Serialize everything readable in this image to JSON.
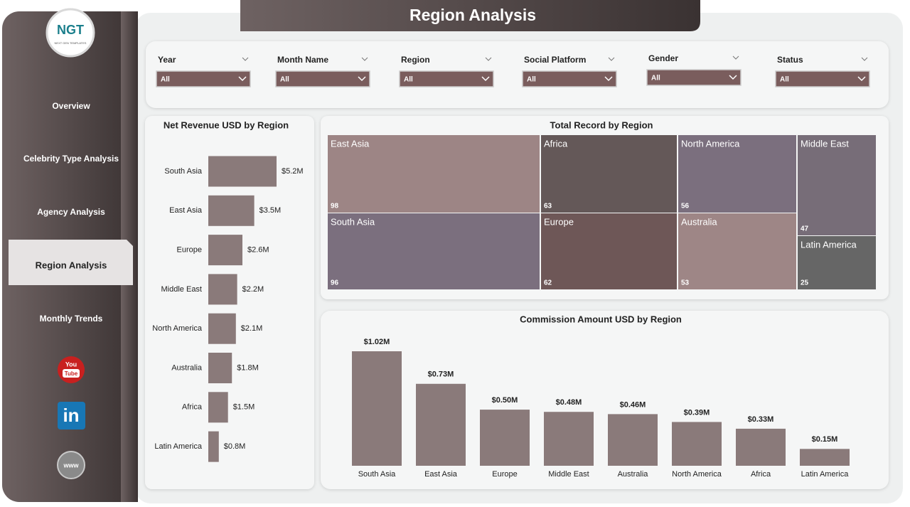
{
  "header": {
    "title": "Region Analysis"
  },
  "logo": {
    "text": "NGT",
    "subtext": "NEXT GEN TEMPLATES"
  },
  "nav": {
    "items": [
      "Overview",
      "Celebrity Type Analysis",
      "Agency Analysis",
      "Region Analysis",
      "Monthly Trends"
    ],
    "active": 3
  },
  "icons": {
    "youtube": [
      "You",
      "Tube"
    ],
    "linkedin": "in",
    "web": "www"
  },
  "filters": [
    {
      "label": "Year",
      "value": "All"
    },
    {
      "label": "Month Name",
      "value": "All"
    },
    {
      "label": "Region",
      "value": "All"
    },
    {
      "label": "Social Platform",
      "value": "All"
    },
    {
      "label": "Gender",
      "value": "All"
    },
    {
      "label": "Status",
      "value": "All"
    }
  ],
  "chart_data": [
    {
      "type": "bar",
      "orientation": "horizontal",
      "title": "Net Revenue USD by Region",
      "color": "#8a7a7a",
      "categories": [
        "South Asia",
        "East Asia",
        "Europe",
        "Middle East",
        "North America",
        "Australia",
        "Africa",
        "Latin America"
      ],
      "values": [
        5200000,
        3500000,
        2600000,
        2200000,
        2100000,
        1800000,
        1500000,
        800000
      ],
      "value_labels": [
        "$5.2M",
        "$3.5M",
        "$2.6M",
        "$2.2M",
        "$2.1M",
        "$1.8M",
        "$1.5M",
        "$0.8M"
      ]
    },
    {
      "type": "treemap",
      "title": "Total Record by Region",
      "categories": [
        "East Asia",
        "South Asia",
        "Africa",
        "Europe",
        "North America",
        "Australia",
        "Middle East",
        "Latin America"
      ],
      "values": [
        98,
        96,
        63,
        62,
        56,
        53,
        47,
        25
      ],
      "colors": [
        "#9d8585",
        "#7b6f7e",
        "#645858",
        "#6e5757",
        "#7b6f7e",
        "#9e8686",
        "#776d78",
        "#666666"
      ]
    },
    {
      "type": "bar",
      "orientation": "vertical",
      "title": "Commission Amount USD by Region",
      "color": "#8a7a7a",
      "categories": [
        "South Asia",
        "East Asia",
        "Europe",
        "Middle East",
        "Australia",
        "North America",
        "Africa",
        "Latin America"
      ],
      "values": [
        1020000,
        730000,
        500000,
        480000,
        460000,
        390000,
        330000,
        150000
      ],
      "value_labels": [
        "$1.02M",
        "$0.73M",
        "$0.50M",
        "$0.48M",
        "$0.46M",
        "$0.39M",
        "$0.33M",
        "$0.15M"
      ]
    }
  ]
}
